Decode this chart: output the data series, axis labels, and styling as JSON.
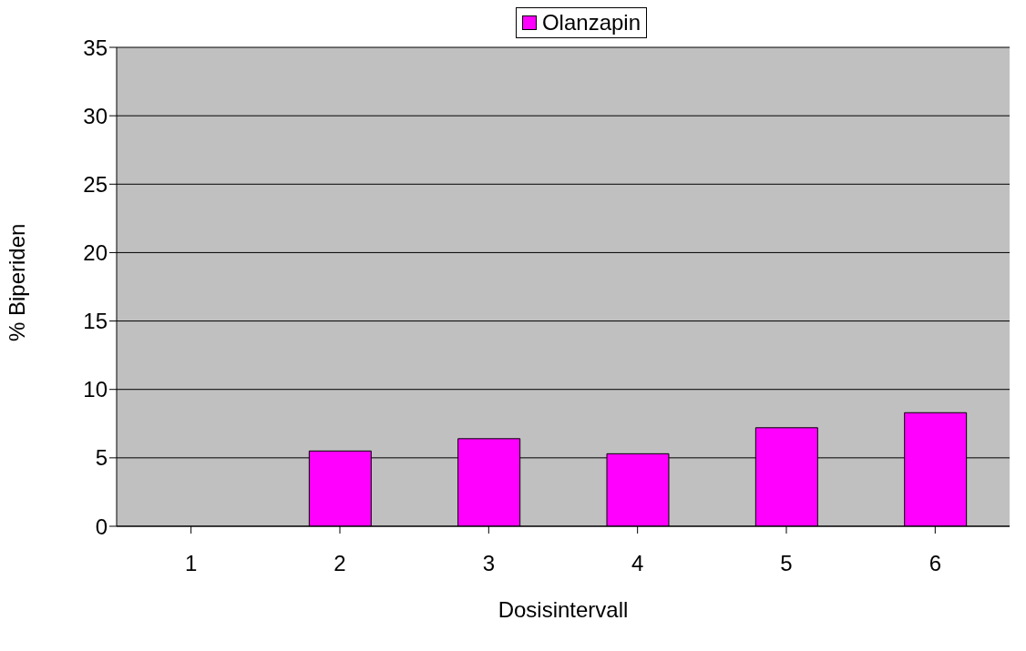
{
  "chart_data": {
    "type": "bar",
    "xlabel": "Dosisintervall",
    "ylabel": "% Biperiden",
    "categories": [
      "1",
      "2",
      "3",
      "4",
      "5",
      "6"
    ],
    "series": [
      {
        "name": "Olanzapin",
        "color": "#ff00ff",
        "values": [
          0,
          5.5,
          6.4,
          5.3,
          7.2,
          8.3
        ]
      }
    ],
    "ylim": [
      0,
      35
    ],
    "yticks": [
      0,
      5,
      10,
      15,
      20,
      25,
      30,
      35
    ],
    "grid": "y",
    "legend": "top"
  }
}
